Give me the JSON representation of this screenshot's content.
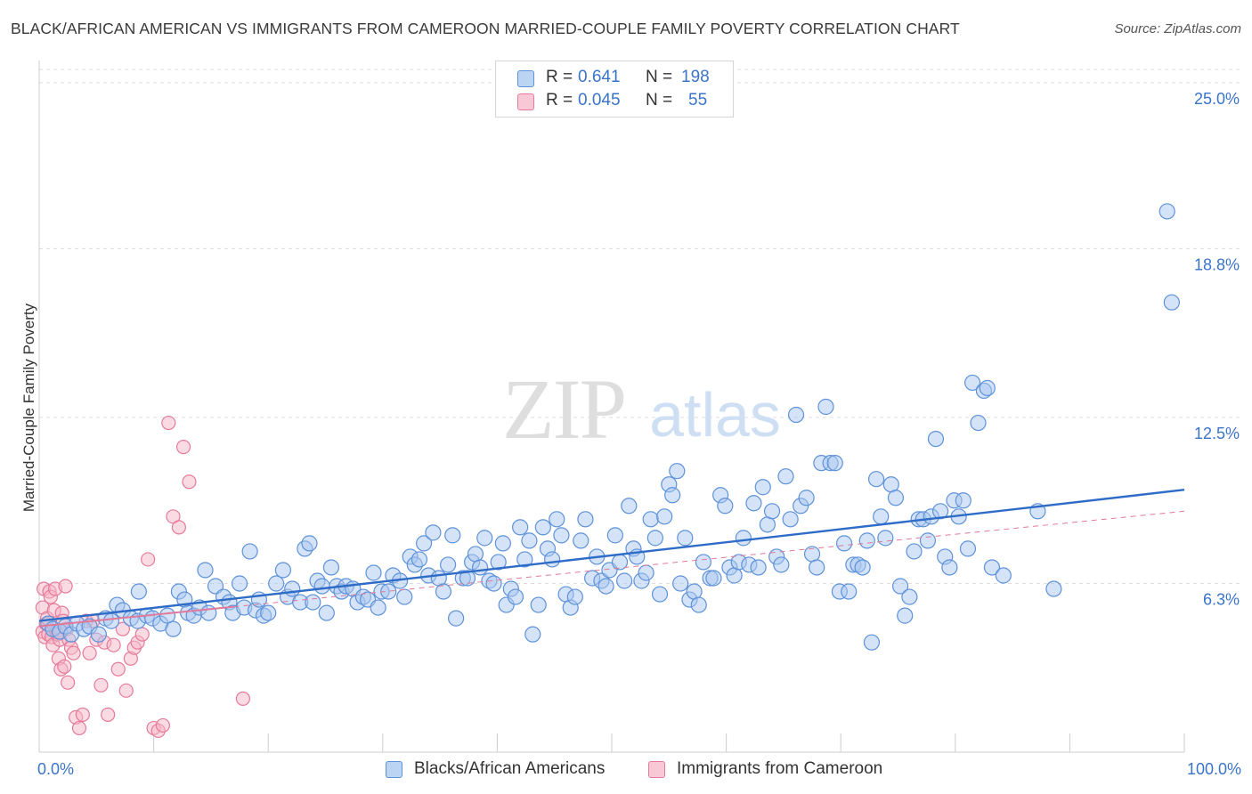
{
  "title": "BLACK/AFRICAN AMERICAN VS IMMIGRANTS FROM CAMEROON MARRIED-COUPLE FAMILY POVERTY CORRELATION CHART",
  "source": "Source: ZipAtlas.com",
  "watermark": {
    "zip": "ZIP",
    "atlas": "atlas"
  },
  "legend_top": {
    "series1": {
      "r_label": "R =",
      "r_value": "0.641",
      "n_label": "N =",
      "n_value": "198"
    },
    "series2": {
      "r_label": "R =",
      "r_value": "0.045",
      "n_label": "N =",
      "n_value": "55"
    }
  },
  "colors": {
    "blue_fill": "#a9c7ef",
    "blue_stroke": "#5e92d9",
    "blue_line": "#2e6cc7",
    "pink_fill": "#f5b6c8",
    "pink_stroke": "#e57b9a",
    "pink_line": "#e0799a",
    "axis_text": "#3a74c9",
    "grid": "#dddddd"
  },
  "chart_data": {
    "type": "scatter",
    "title": "BLACK/AFRICAN AMERICAN VS IMMIGRANTS FROM CAMEROON MARRIED-COUPLE FAMILY POVERTY CORRELATION CHART",
    "xlabel": "",
    "ylabel": "Married-Couple Family Poverty",
    "xlim": [
      0,
      100
    ],
    "ylim": [
      0,
      25.7
    ],
    "x_tick_labels": [
      "0.0%",
      "100.0%"
    ],
    "y_ticks": [
      6.3,
      12.5,
      18.8,
      25.0
    ],
    "y_tick_labels": [
      "6.3%",
      "12.5%",
      "18.8%",
      "25.0%"
    ],
    "legend": [
      "Blacks/African Americans",
      "Immigrants from Cameroon"
    ],
    "series": [
      {
        "name": "Blacks/African Americans",
        "r": 0.641,
        "n": 198,
        "trend": {
          "x": [
            0,
            100
          ],
          "y": [
            4.9,
            9.8
          ]
        },
        "points": [
          [
            0.8,
            4.8
          ],
          [
            1.2,
            4.6
          ],
          [
            1.8,
            4.5
          ],
          [
            2.3,
            4.7
          ],
          [
            2.8,
            4.4
          ],
          [
            3.3,
            4.8
          ],
          [
            3.9,
            4.6
          ],
          [
            4.4,
            4.7
          ],
          [
            5.2,
            4.4
          ],
          [
            5.8,
            5.0
          ],
          [
            6.3,
            4.9
          ],
          [
            6.8,
            5.5
          ],
          [
            7.3,
            5.3
          ],
          [
            8.0,
            5.0
          ],
          [
            8.6,
            4.9
          ],
          [
            8.7,
            6.0
          ],
          [
            9.4,
            5.1
          ],
          [
            9.9,
            5.0
          ],
          [
            10.6,
            4.8
          ],
          [
            11.2,
            5.1
          ],
          [
            11.7,
            4.6
          ],
          [
            12.2,
            6.0
          ],
          [
            12.7,
            5.7
          ],
          [
            13.0,
            5.2
          ],
          [
            13.5,
            5.1
          ],
          [
            14.0,
            5.4
          ],
          [
            14.5,
            6.8
          ],
          [
            14.8,
            5.2
          ],
          [
            15.4,
            6.2
          ],
          [
            16.1,
            5.8
          ],
          [
            16.6,
            5.6
          ],
          [
            16.9,
            5.2
          ],
          [
            17.5,
            6.3
          ],
          [
            17.9,
            5.4
          ],
          [
            18.4,
            7.5
          ],
          [
            18.9,
            5.3
          ],
          [
            19.2,
            5.7
          ],
          [
            19.6,
            5.1
          ],
          [
            20.0,
            5.2
          ],
          [
            20.7,
            6.3
          ],
          [
            21.3,
            6.8
          ],
          [
            21.7,
            5.8
          ],
          [
            22.1,
            6.1
          ],
          [
            22.8,
            5.6
          ],
          [
            23.2,
            7.6
          ],
          [
            23.6,
            7.8
          ],
          [
            23.9,
            5.6
          ],
          [
            24.3,
            6.4
          ],
          [
            24.7,
            6.2
          ],
          [
            25.1,
            5.2
          ],
          [
            25.5,
            6.9
          ],
          [
            26.0,
            6.2
          ],
          [
            26.4,
            6.0
          ],
          [
            26.8,
            6.2
          ],
          [
            27.4,
            6.1
          ],
          [
            27.8,
            5.6
          ],
          [
            28.3,
            5.8
          ],
          [
            28.7,
            5.7
          ],
          [
            29.2,
            6.7
          ],
          [
            29.6,
            5.4
          ],
          [
            29.9,
            6.0
          ],
          [
            30.5,
            6.0
          ],
          [
            30.9,
            6.6
          ],
          [
            31.5,
            6.4
          ],
          [
            31.9,
            5.8
          ],
          [
            32.4,
            7.3
          ],
          [
            32.8,
            7.0
          ],
          [
            33.2,
            7.2
          ],
          [
            33.6,
            7.8
          ],
          [
            34.0,
            6.6
          ],
          [
            34.4,
            8.2
          ],
          [
            34.9,
            6.5
          ],
          [
            35.3,
            6.0
          ],
          [
            35.7,
            7.0
          ],
          [
            36.1,
            8.1
          ],
          [
            36.4,
            5.0
          ],
          [
            37.0,
            6.5
          ],
          [
            37.4,
            6.5
          ],
          [
            37.8,
            7.1
          ],
          [
            38.1,
            7.4
          ],
          [
            38.5,
            6.9
          ],
          [
            38.9,
            8.0
          ],
          [
            39.3,
            6.4
          ],
          [
            39.7,
            6.3
          ],
          [
            40.1,
            7.1
          ],
          [
            40.5,
            7.8
          ],
          [
            40.8,
            5.5
          ],
          [
            41.2,
            6.1
          ],
          [
            41.6,
            5.8
          ],
          [
            42.0,
            8.4
          ],
          [
            42.4,
            7.2
          ],
          [
            42.8,
            7.9
          ],
          [
            43.1,
            4.4
          ],
          [
            43.6,
            5.5
          ],
          [
            44.0,
            8.4
          ],
          [
            44.4,
            7.6
          ],
          [
            44.8,
            7.2
          ],
          [
            45.2,
            8.7
          ],
          [
            45.6,
            8.1
          ],
          [
            46.0,
            5.9
          ],
          [
            46.4,
            5.4
          ],
          [
            46.8,
            5.8
          ],
          [
            47.3,
            7.9
          ],
          [
            47.7,
            8.7
          ],
          [
            48.3,
            6.5
          ],
          [
            48.7,
            7.3
          ],
          [
            49.1,
            6.4
          ],
          [
            49.5,
            6.2
          ],
          [
            49.8,
            6.8
          ],
          [
            50.3,
            8.1
          ],
          [
            50.7,
            7.1
          ],
          [
            51.1,
            6.4
          ],
          [
            51.5,
            9.2
          ],
          [
            51.9,
            7.6
          ],
          [
            52.2,
            7.3
          ],
          [
            52.6,
            6.4
          ],
          [
            53.0,
            6.7
          ],
          [
            53.4,
            8.7
          ],
          [
            53.8,
            8.0
          ],
          [
            54.2,
            5.9
          ],
          [
            54.6,
            8.8
          ],
          [
            55.0,
            10.0
          ],
          [
            55.3,
            9.6
          ],
          [
            55.7,
            10.5
          ],
          [
            56.0,
            6.3
          ],
          [
            56.4,
            8.0
          ],
          [
            56.8,
            5.7
          ],
          [
            57.2,
            6.0
          ],
          [
            57.6,
            5.5
          ],
          [
            58.0,
            7.1
          ],
          [
            58.6,
            6.5
          ],
          [
            58.9,
            6.5
          ],
          [
            59.5,
            9.6
          ],
          [
            59.9,
            9.2
          ],
          [
            60.3,
            6.9
          ],
          [
            60.7,
            6.6
          ],
          [
            61.1,
            7.1
          ],
          [
            61.5,
            8.0
          ],
          [
            62.0,
            7.0
          ],
          [
            62.4,
            9.3
          ],
          [
            62.8,
            6.9
          ],
          [
            63.2,
            9.9
          ],
          [
            63.6,
            8.5
          ],
          [
            64.0,
            9.0
          ],
          [
            64.4,
            7.3
          ],
          [
            64.8,
            7.0
          ],
          [
            65.2,
            10.3
          ],
          [
            65.6,
            8.7
          ],
          [
            66.1,
            12.6
          ],
          [
            66.5,
            9.2
          ],
          [
            67.0,
            9.5
          ],
          [
            67.5,
            7.4
          ],
          [
            67.9,
            6.9
          ],
          [
            68.3,
            10.8
          ],
          [
            68.7,
            12.9
          ],
          [
            69.1,
            10.8
          ],
          [
            69.5,
            10.8
          ],
          [
            69.9,
            6.0
          ],
          [
            70.3,
            7.8
          ],
          [
            70.7,
            6.0
          ],
          [
            71.1,
            7.0
          ],
          [
            71.5,
            7.0
          ],
          [
            71.9,
            6.9
          ],
          [
            72.3,
            7.9
          ],
          [
            72.7,
            4.1
          ],
          [
            73.1,
            10.2
          ],
          [
            73.5,
            8.8
          ],
          [
            73.9,
            8.0
          ],
          [
            74.4,
            10.0
          ],
          [
            74.8,
            9.5
          ],
          [
            75.2,
            6.2
          ],
          [
            75.6,
            5.1
          ],
          [
            76.0,
            5.8
          ],
          [
            76.4,
            7.5
          ],
          [
            76.8,
            8.7
          ],
          [
            77.2,
            8.7
          ],
          [
            77.6,
            7.9
          ],
          [
            77.9,
            8.8
          ],
          [
            78.3,
            11.7
          ],
          [
            78.7,
            9.0
          ],
          [
            79.1,
            7.3
          ],
          [
            79.5,
            6.9
          ],
          [
            79.9,
            9.4
          ],
          [
            80.3,
            8.8
          ],
          [
            80.7,
            9.4
          ],
          [
            81.1,
            7.6
          ],
          [
            81.5,
            13.8
          ],
          [
            82.0,
            12.3
          ],
          [
            82.5,
            13.5
          ],
          [
            82.8,
            13.6
          ],
          [
            83.2,
            6.9
          ],
          [
            84.2,
            6.6
          ],
          [
            87.2,
            9.0
          ],
          [
            88.6,
            6.1
          ],
          [
            98.5,
            20.2
          ],
          [
            98.9,
            16.8
          ]
        ]
      },
      {
        "name": "Immigrants from Cameroon",
        "r": 0.045,
        "n": 55,
        "trend": {
          "x": [
            0,
            100
          ],
          "y": [
            4.7,
            9.0
          ]
        },
        "points": [
          [
            0.3,
            5.4
          ],
          [
            0.3,
            4.5
          ],
          [
            0.4,
            6.1
          ],
          [
            0.5,
            4.3
          ],
          [
            0.6,
            4.8
          ],
          [
            0.7,
            5.0
          ],
          [
            0.8,
            4.4
          ],
          [
            0.9,
            6.0
          ],
          [
            1.0,
            5.8
          ],
          [
            1.1,
            4.3
          ],
          [
            1.2,
            4.0
          ],
          [
            1.3,
            5.3
          ],
          [
            1.4,
            6.1
          ],
          [
            1.5,
            4.5
          ],
          [
            1.6,
            4.4
          ],
          [
            1.7,
            3.5
          ],
          [
            1.8,
            4.2
          ],
          [
            1.9,
            3.1
          ],
          [
            2.0,
            5.2
          ],
          [
            2.1,
            4.9
          ],
          [
            2.2,
            3.2
          ],
          [
            2.3,
            6.2
          ],
          [
            2.4,
            4.6
          ],
          [
            2.5,
            2.6
          ],
          [
            2.6,
            4.2
          ],
          [
            2.8,
            3.9
          ],
          [
            3.0,
            3.7
          ],
          [
            3.2,
            1.3
          ],
          [
            3.5,
            0.9
          ],
          [
            3.8,
            1.4
          ],
          [
            4.1,
            4.9
          ],
          [
            4.4,
            3.7
          ],
          [
            4.7,
            4.9
          ],
          [
            5.0,
            4.2
          ],
          [
            5.4,
            2.5
          ],
          [
            5.7,
            4.1
          ],
          [
            6.0,
            1.4
          ],
          [
            6.5,
            4.0
          ],
          [
            6.9,
            3.1
          ],
          [
            7.3,
            4.6
          ],
          [
            7.6,
            2.3
          ],
          [
            8.0,
            3.5
          ],
          [
            8.3,
            3.9
          ],
          [
            8.6,
            4.1
          ],
          [
            9.0,
            4.4
          ],
          [
            9.5,
            7.2
          ],
          [
            10.0,
            0.9
          ],
          [
            10.4,
            0.8
          ],
          [
            10.8,
            1.0
          ],
          [
            11.3,
            12.3
          ],
          [
            11.7,
            8.8
          ],
          [
            12.2,
            8.4
          ],
          [
            12.6,
            11.4
          ],
          [
            13.1,
            10.1
          ],
          [
            17.8,
            2.0
          ]
        ]
      }
    ]
  }
}
